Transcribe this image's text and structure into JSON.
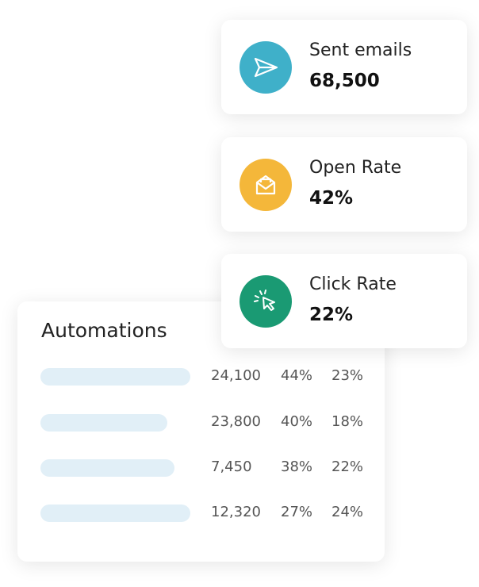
{
  "stats": [
    {
      "label": "Sent emails",
      "value": "68,500"
    },
    {
      "label": "Open Rate",
      "value": "42%"
    },
    {
      "label": "Click Rate",
      "value": "22%"
    }
  ],
  "table": {
    "title": "Automations",
    "rows": [
      [
        "24,100",
        "44%",
        "23%"
      ],
      [
        "23,800",
        "40%",
        "18%"
      ],
      [
        "7,450",
        "38%",
        "22%"
      ],
      [
        "12,320",
        "27%",
        "24%"
      ]
    ]
  }
}
